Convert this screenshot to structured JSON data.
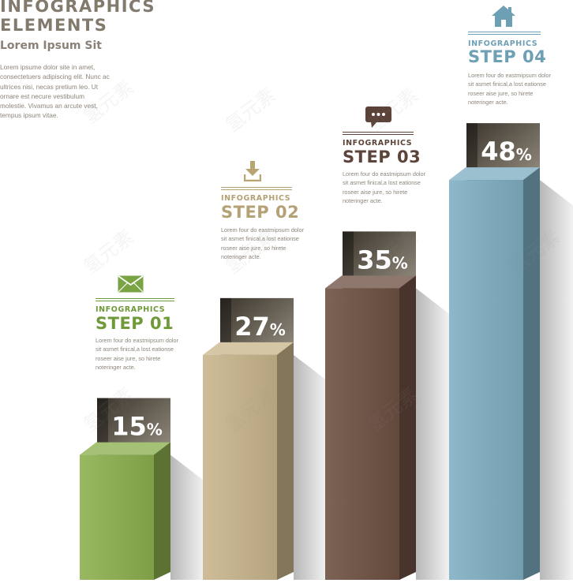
{
  "header": {
    "title": "INFOGRAPHICS\nELEMENTS",
    "subtitle": "Lorem Ipsum Sit",
    "intro": "Lorem ipsume dolor site in amet, consectetuers adipiscing elit. Nunc ac ultrices nisi, necas pretium leo. Ut ornare est necure vestibulum molestie. Vivamus an arcute vest, tempus ipsum vitae."
  },
  "steps": [
    {
      "kicker": "INFOGRAPHICS",
      "label": "STEP 01",
      "icon": "envelope-icon",
      "color": "#6e9a3a",
      "desc": "Lorem four do eastmipsum dolor sit asmet finical,a lost eationse roseer aise jure, so hirete noteringer acte."
    },
    {
      "kicker": "INFOGRAPHICS",
      "label": "STEP 02",
      "icon": "download-icon",
      "color": "#b4a276",
      "desc": "Lorem four do eastmipsum dolor sit asmet finical,a lost eationse roseer aise jure, so hirete noteringer acte."
    },
    {
      "kicker": "INFOGRAPHICS",
      "label": "STEP 03",
      "icon": "chat-bubble-icon",
      "color": "#5c443a",
      "desc": "Lorem four do eastmipsum dolor sit asmet finical,a lost eationse roseer aise jure, so hirete noteringer acte."
    },
    {
      "kicker": "INFOGRAPHICS",
      "label": "STEP 04",
      "icon": "house-icon",
      "color": "#6d9fb5",
      "desc": "Lorem four do eastmipsum dolor sit asmet finical,a lost eationse roseer aise jure, so hirete noteringer acte."
    }
  ],
  "chart_data": {
    "type": "bar",
    "categories": [
      "STEP 01",
      "STEP 02",
      "STEP 03",
      "STEP 04"
    ],
    "values": [
      15,
      27,
      35,
      48
    ],
    "value_suffix": "%",
    "colors": [
      "#8cb04f",
      "#c9b68c",
      "#6e5043",
      "#7fb0c4"
    ],
    "title": "",
    "xlabel": "",
    "ylabel": ""
  },
  "watermark": "氢元素"
}
